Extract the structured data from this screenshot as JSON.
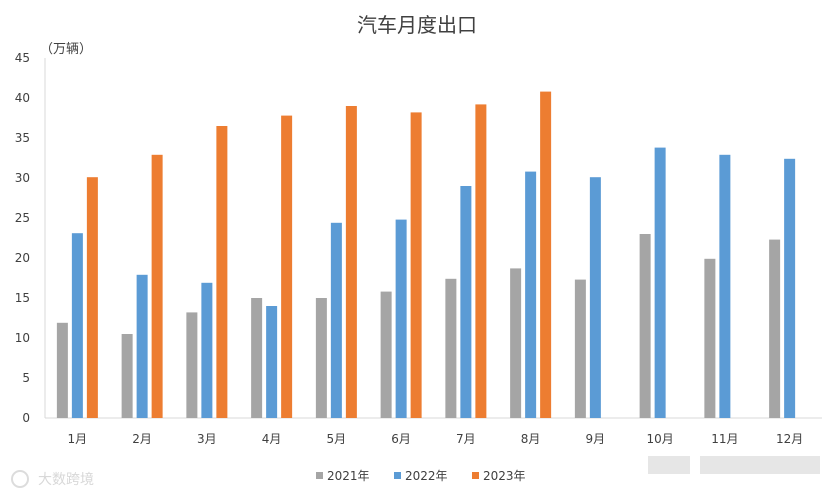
{
  "chart_data": {
    "type": "bar",
    "title": "汽车月度出口",
    "unit_label": "（万辆）",
    "categories": [
      "1月",
      "2月",
      "3月",
      "4月",
      "5月",
      "6月",
      "7月",
      "8月",
      "9月",
      "10月",
      "11月",
      "12月"
    ],
    "series": [
      {
        "name": "2021年",
        "color": "#a5a5a5",
        "values": [
          11.9,
          10.5,
          13.2,
          15.0,
          15.0,
          15.8,
          17.4,
          18.7,
          17.3,
          23.0,
          19.9,
          22.3
        ]
      },
      {
        "name": "2022年",
        "color": "#5b9bd5",
        "values": [
          23.1,
          17.9,
          16.9,
          14.0,
          24.4,
          24.8,
          29.0,
          30.8,
          30.1,
          33.8,
          32.9,
          32.4
        ]
      },
      {
        "name": "2023年",
        "color": "#ed7d31",
        "values": [
          30.1,
          32.9,
          36.5,
          37.8,
          39.0,
          38.2,
          39.2,
          40.8,
          null,
          null,
          null,
          null
        ]
      }
    ],
    "ylim": [
      0,
      45
    ],
    "yticks": [
      0,
      5,
      10,
      15,
      20,
      25,
      30,
      35,
      40,
      45
    ],
    "grid": false,
    "legend_position": "bottom"
  },
  "watermark": {
    "text": "大数跨境"
  }
}
